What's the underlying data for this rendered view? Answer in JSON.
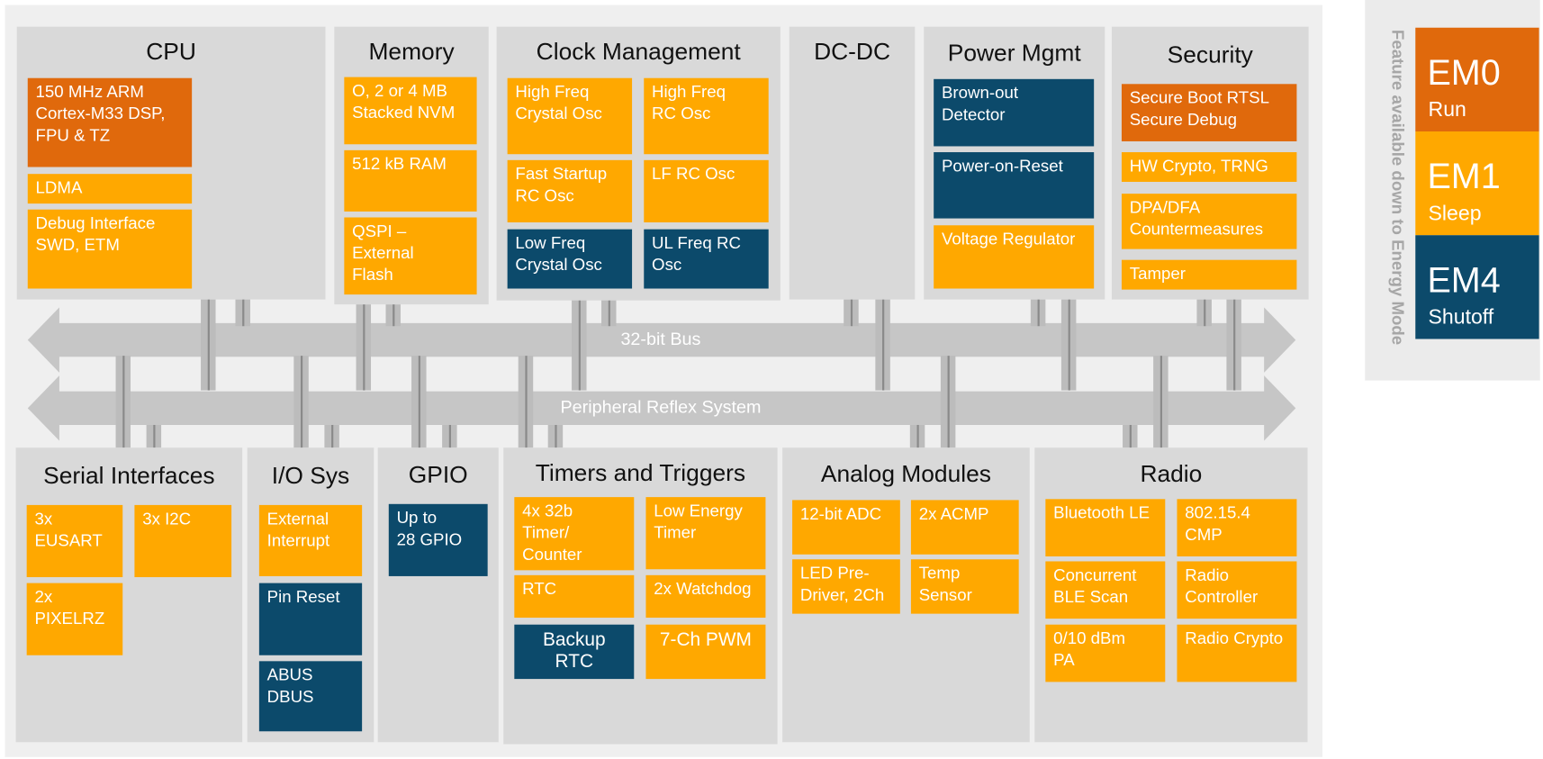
{
  "groups": [
    {
      "title": "CPU",
      "blocks": [
        [
          "150 MHz ARM",
          "Cortex-M33 DSP,",
          "FPU & TZ"
        ],
        [
          "LDMA"
        ],
        [
          "Debug Interface",
          "SWD, ETM"
        ]
      ]
    },
    {
      "title": "Memory",
      "blocks": [
        [
          "O, 2 or 4 MB",
          "Stacked NVM"
        ],
        [
          "512 kB RAM"
        ],
        [
          "QSPI –",
          "External",
          "Flash"
        ]
      ]
    },
    {
      "title": "Clock Management",
      "blocks": [
        [
          "High Freq",
          "Crystal Osc"
        ],
        [
          "High Freq",
          "RC Osc"
        ],
        [
          "Fast Startup",
          "RC Osc"
        ],
        [
          "LF RC Osc"
        ],
        [
          "Low Freq",
          "Crystal Osc"
        ],
        [
          "UL Freq RC",
          "Osc"
        ]
      ]
    },
    {
      "title": "DC-DC",
      "blocks": []
    },
    {
      "title": "Power Mgmt",
      "blocks": [
        [
          "Brown-out",
          "Detector"
        ],
        [
          "Power-on-Reset"
        ],
        [
          "Voltage Regulator"
        ]
      ]
    },
    {
      "title": "Security",
      "blocks": [
        [
          "Secure Boot RTSL",
          "Secure Debug"
        ],
        [
          "HW Crypto, TRNG"
        ],
        [
          "DPA/DFA",
          "Countermeasures"
        ],
        [
          "Tamper"
        ]
      ]
    },
    {
      "title": "Serial Interfaces",
      "blocks": [
        [
          "3x",
          "EUSART"
        ],
        [
          "3x I2C"
        ],
        [
          "2x",
          "PIXELRZ"
        ]
      ]
    },
    {
      "title": "I/O Sys",
      "blocks": [
        [
          "External",
          "Interrupt"
        ],
        [
          "Pin Reset"
        ],
        [
          "ABUS",
          "DBUS"
        ]
      ]
    },
    {
      "title": "GPIO",
      "blocks": [
        [
          "Up to",
          "28 GPIO"
        ]
      ]
    },
    {
      "title": "Timers and Triggers",
      "blocks": [
        [
          "4x 32b",
          "Timer/",
          "Counter"
        ],
        [
          "Low Energy",
          "Timer"
        ],
        [
          "RTC"
        ],
        [
          "2x Watchdog"
        ],
        [
          "Backup",
          "RTC"
        ],
        [
          "7-Ch PWM"
        ]
      ]
    },
    {
      "title": "Analog Modules",
      "blocks": [
        [
          "12-bit ADC"
        ],
        [
          "2x ACMP"
        ],
        [
          "LED Pre-",
          "Driver, 2Ch"
        ],
        [
          "Temp",
          "Sensor"
        ]
      ]
    },
    {
      "title": "Radio",
      "blocks": [
        [
          "Bluetooth LE"
        ],
        [
          "802.15.4",
          "CMP"
        ],
        [
          "Concurrent",
          "BLE Scan"
        ],
        [
          "Radio",
          "Controller"
        ],
        [
          "0/10 dBm",
          "PA"
        ],
        [
          "Radio Crypto"
        ]
      ]
    }
  ],
  "buses": [
    "32-bit Bus",
    "Peripheral Reflex System"
  ],
  "legend": {
    "caption": "Feature available down to Energy Mode",
    "modes": [
      {
        "name": "EM0",
        "label": "Run"
      },
      {
        "name": "EM1",
        "label": "Sleep"
      },
      {
        "name": "EM4",
        "label": "Shutoff"
      }
    ]
  }
}
